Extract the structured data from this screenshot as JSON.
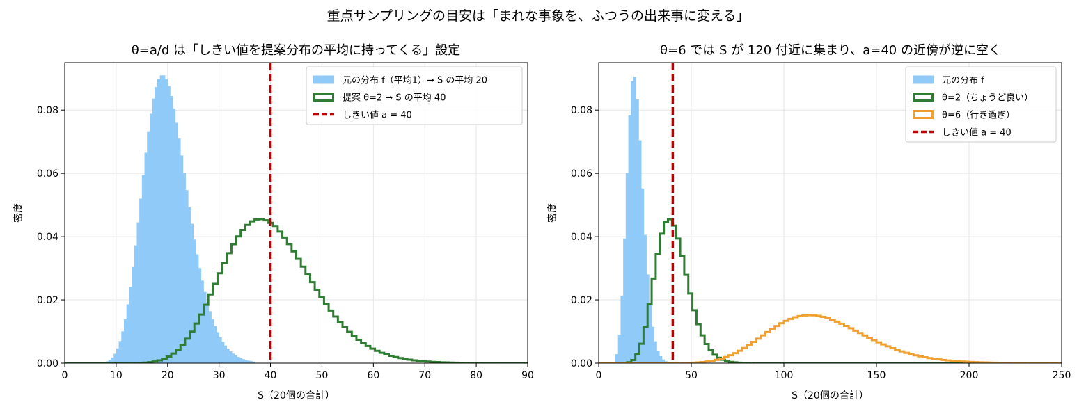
{
  "figure": {
    "suptitle": "重点サンプリングの目安は「まれな事象を、ふつうの出来事に変える」"
  },
  "chart_data": [
    {
      "type": "histogram",
      "title": "θ=a/d は「しきい値を提案分布の平均に持ってくる」設定",
      "xlabel": "S（20個の合計）",
      "ylabel": "密度",
      "xlim": [
        0,
        90
      ],
      "ylim": [
        0,
        0.095
      ],
      "xticks": [
        "0",
        "10",
        "20",
        "30",
        "40",
        "50",
        "60",
        "70",
        "80",
        "90"
      ],
      "yticks": [
        "0.00",
        "0.02",
        "0.04",
        "0.06",
        "0.08"
      ],
      "grid": true,
      "legend_position": "top-right",
      "series": [
        {
          "name": "元の分布 f（平均1）→ S の平均 20",
          "style": "filled",
          "color": "#90caf9",
          "distribution": "gamma",
          "shape": 20,
          "scale": 1,
          "x_range": [
            8,
            37
          ],
          "bin_width": 0.5
        },
        {
          "name": "提案 θ=2 → S の平均 40",
          "style": "step",
          "color": "#2e7d32",
          "distribution": "gamma",
          "shape": 20,
          "scale": 2,
          "x_range": [
            0,
            90
          ],
          "bin_width": 0.9
        }
      ],
      "vline": {
        "name": "しきい値 a = 40",
        "x": 40,
        "color": "#c00000",
        "style": "dashed"
      }
    },
    {
      "type": "histogram",
      "title": "θ=6 では S が 120 付近に集まり、a=40 の近傍が逆に空く",
      "xlabel": "S（20個の合計）",
      "ylabel": "密度",
      "xlim": [
        0,
        250
      ],
      "ylim": [
        0,
        0.095
      ],
      "xticks": [
        "0",
        "50",
        "100",
        "150",
        "200",
        "250"
      ],
      "yticks": [
        "0.00",
        "0.02",
        "0.04",
        "0.06",
        "0.08"
      ],
      "grid": true,
      "legend_position": "top-right",
      "series": [
        {
          "name": "元の分布 f",
          "style": "filled",
          "color": "#90caf9",
          "distribution": "gamma",
          "shape": 20,
          "scale": 1,
          "x_range": [
            9,
            36
          ],
          "bin_width": 1.4
        },
        {
          "name": "θ=2（ちょうど良い）",
          "style": "step",
          "color": "#2e7d32",
          "distribution": "gamma",
          "shape": 20,
          "scale": 2,
          "x_range": [
            0,
            250
          ],
          "bin_width": 2.2
        },
        {
          "name": "θ=6（行き過ぎ）",
          "style": "step",
          "color": "#f0a030",
          "distribution": "gamma",
          "shape": 20,
          "scale": 6,
          "x_range": [
            0,
            250
          ],
          "bin_width": 2.5
        }
      ],
      "vline": {
        "name": "しきい値 a = 40",
        "x": 40,
        "color": "#c00000",
        "style": "dashed"
      }
    }
  ]
}
